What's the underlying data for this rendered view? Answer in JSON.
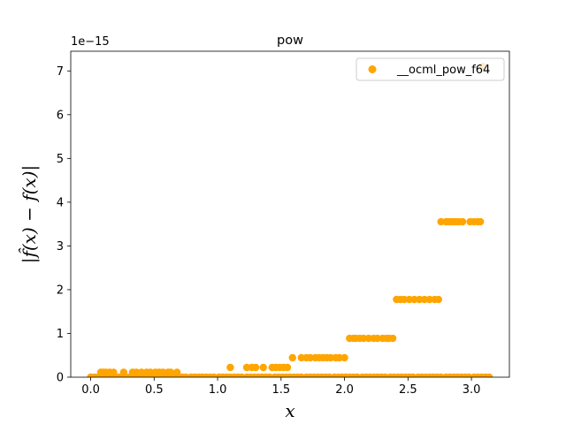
{
  "chart_data": {
    "type": "scatter",
    "title": "pow",
    "xlabel": "x",
    "ylabel": "|f̂(x) − f(x)|",
    "offset_text": "1e−15",
    "xlim": [
      -0.157,
      3.299
    ],
    "ylim": [
      0,
      7.45
    ],
    "y_scale_multiplier": 1e-15,
    "xticks": [
      0.0,
      0.5,
      1.0,
      1.5,
      2.0,
      2.5,
      3.0
    ],
    "xtick_labels": [
      "0.0",
      "0.5",
      "1.0",
      "1.5",
      "2.0",
      "2.5",
      "3.0"
    ],
    "yticks": [
      0,
      1,
      2,
      3,
      4,
      5,
      6,
      7
    ],
    "ytick_labels": [
      "0",
      "1",
      "2",
      "3",
      "4",
      "5",
      "6",
      "7"
    ],
    "grid": false,
    "legend_position": "top-right",
    "series": [
      {
        "name": "__ocml_pow_f64",
        "color": "#ffa500",
        "points": [
          [
            0.0,
            0.0
          ],
          [
            0.03,
            0.0
          ],
          [
            0.06,
            0.0
          ],
          [
            0.1,
            0.0
          ],
          [
            0.13,
            0.0
          ],
          [
            0.16,
            0.0
          ],
          [
            0.19,
            0.0
          ],
          [
            0.22,
            0.0
          ],
          [
            0.25,
            0.0
          ],
          [
            0.28,
            0.0
          ],
          [
            0.31,
            0.0
          ],
          [
            0.35,
            0.0
          ],
          [
            0.38,
            0.0
          ],
          [
            0.41,
            0.0
          ],
          [
            0.44,
            0.0
          ],
          [
            0.47,
            0.0
          ],
          [
            0.5,
            0.0
          ],
          [
            0.53,
            0.0
          ],
          [
            0.57,
            0.0
          ],
          [
            0.6,
            0.0
          ],
          [
            0.63,
            0.0
          ],
          [
            0.66,
            0.0
          ],
          [
            0.69,
            0.0
          ],
          [
            0.72,
            0.0
          ],
          [
            0.75,
            0.0
          ],
          [
            0.79,
            0.0
          ],
          [
            0.82,
            0.0
          ],
          [
            0.85,
            0.0
          ],
          [
            0.88,
            0.0
          ],
          [
            0.91,
            0.0
          ],
          [
            0.94,
            0.0
          ],
          [
            0.97,
            0.0
          ],
          [
            1.01,
            0.0
          ],
          [
            1.04,
            0.0
          ],
          [
            1.07,
            0.0
          ],
          [
            1.1,
            0.0
          ],
          [
            1.13,
            0.0
          ],
          [
            1.16,
            0.0
          ],
          [
            1.19,
            0.0
          ],
          [
            1.23,
            0.0
          ],
          [
            1.26,
            0.0
          ],
          [
            1.29,
            0.0
          ],
          [
            1.32,
            0.0
          ],
          [
            1.35,
            0.0
          ],
          [
            1.38,
            0.0
          ],
          [
            1.41,
            0.0
          ],
          [
            1.45,
            0.0
          ],
          [
            1.48,
            0.0
          ],
          [
            1.51,
            0.0
          ],
          [
            1.54,
            0.0
          ],
          [
            1.57,
            0.0
          ],
          [
            1.6,
            0.0
          ],
          [
            1.63,
            0.0
          ],
          [
            1.66,
            0.0
          ],
          [
            1.7,
            0.0
          ],
          [
            1.73,
            0.0
          ],
          [
            1.76,
            0.0
          ],
          [
            1.79,
            0.0
          ],
          [
            1.82,
            0.0
          ],
          [
            1.85,
            0.0
          ],
          [
            1.88,
            0.0
          ],
          [
            1.92,
            0.0
          ],
          [
            1.95,
            0.0
          ],
          [
            1.98,
            0.0
          ],
          [
            2.01,
            0.0
          ],
          [
            2.04,
            0.0
          ],
          [
            2.07,
            0.0
          ],
          [
            2.1,
            0.0
          ],
          [
            2.14,
            0.0
          ],
          [
            2.17,
            0.0
          ],
          [
            2.2,
            0.0
          ],
          [
            2.23,
            0.0
          ],
          [
            2.26,
            0.0
          ],
          [
            2.29,
            0.0
          ],
          [
            2.32,
            0.0
          ],
          [
            2.36,
            0.0
          ],
          [
            2.39,
            0.0
          ],
          [
            2.42,
            0.0
          ],
          [
            2.45,
            0.0
          ],
          [
            2.48,
            0.0
          ],
          [
            2.51,
            0.0
          ],
          [
            2.54,
            0.0
          ],
          [
            2.58,
            0.0
          ],
          [
            2.61,
            0.0
          ],
          [
            2.64,
            0.0
          ],
          [
            2.67,
            0.0
          ],
          [
            2.7,
            0.0
          ],
          [
            2.73,
            0.0
          ],
          [
            2.76,
            0.0
          ],
          [
            2.8,
            0.0
          ],
          [
            2.83,
            0.0
          ],
          [
            2.86,
            0.0
          ],
          [
            2.89,
            0.0
          ],
          [
            2.92,
            0.0
          ],
          [
            2.95,
            0.0
          ],
          [
            2.98,
            0.0
          ],
          [
            3.02,
            0.0
          ],
          [
            3.05,
            0.0
          ],
          [
            3.08,
            0.0
          ],
          [
            3.11,
            0.0
          ],
          [
            3.14,
            0.0
          ],
          [
            0.08,
            0.111
          ],
          [
            0.1,
            0.111
          ],
          [
            0.12,
            0.111
          ],
          [
            0.15,
            0.111
          ],
          [
            0.18,
            0.111
          ],
          [
            0.26,
            0.111
          ],
          [
            0.33,
            0.111
          ],
          [
            0.36,
            0.111
          ],
          [
            0.4,
            0.111
          ],
          [
            0.44,
            0.111
          ],
          [
            0.47,
            0.111
          ],
          [
            0.51,
            0.111
          ],
          [
            0.54,
            0.111
          ],
          [
            0.57,
            0.111
          ],
          [
            0.61,
            0.111
          ],
          [
            0.63,
            0.111
          ],
          [
            0.68,
            0.111
          ],
          [
            1.1,
            0.222
          ],
          [
            1.23,
            0.222
          ],
          [
            1.27,
            0.222
          ],
          [
            1.3,
            0.222
          ],
          [
            1.36,
            0.222
          ],
          [
            1.43,
            0.222
          ],
          [
            1.46,
            0.222
          ],
          [
            1.49,
            0.222
          ],
          [
            1.52,
            0.222
          ],
          [
            1.55,
            0.222
          ],
          [
            1.59,
            0.444
          ],
          [
            1.66,
            0.444
          ],
          [
            1.7,
            0.444
          ],
          [
            1.73,
            0.444
          ],
          [
            1.77,
            0.444
          ],
          [
            1.8,
            0.444
          ],
          [
            1.83,
            0.444
          ],
          [
            1.86,
            0.444
          ],
          [
            1.89,
            0.444
          ],
          [
            1.93,
            0.444
          ],
          [
            1.96,
            0.444
          ],
          [
            2.0,
            0.444
          ],
          [
            2.04,
            0.888
          ],
          [
            2.07,
            0.888
          ],
          [
            2.09,
            0.888
          ],
          [
            2.12,
            0.888
          ],
          [
            2.15,
            0.888
          ],
          [
            2.19,
            0.888
          ],
          [
            2.23,
            0.888
          ],
          [
            2.26,
            0.888
          ],
          [
            2.3,
            0.888
          ],
          [
            2.33,
            0.888
          ],
          [
            2.35,
            0.888
          ],
          [
            2.38,
            0.888
          ],
          [
            2.41,
            1.776
          ],
          [
            2.44,
            1.776
          ],
          [
            2.47,
            1.776
          ],
          [
            2.51,
            1.776
          ],
          [
            2.55,
            1.776
          ],
          [
            2.59,
            1.776
          ],
          [
            2.63,
            1.776
          ],
          [
            2.67,
            1.776
          ],
          [
            2.71,
            1.776
          ],
          [
            2.74,
            1.776
          ],
          [
            2.76,
            3.553
          ],
          [
            2.8,
            3.553
          ],
          [
            2.82,
            3.553
          ],
          [
            2.84,
            3.553
          ],
          [
            2.86,
            3.553
          ],
          [
            2.88,
            3.553
          ],
          [
            2.9,
            3.553
          ],
          [
            2.93,
            3.553
          ],
          [
            2.99,
            3.553
          ],
          [
            3.02,
            3.553
          ],
          [
            3.05,
            3.553
          ],
          [
            3.07,
            3.553
          ],
          [
            3.09,
            7.105
          ]
        ]
      }
    ]
  }
}
